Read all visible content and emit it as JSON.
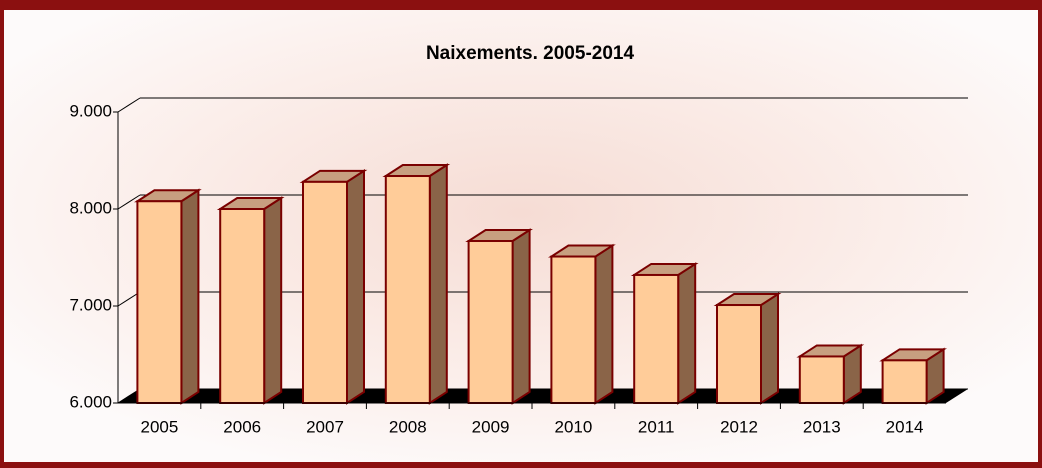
{
  "chart_data": {
    "type": "bar3d",
    "title": "Naixements. 2005-2014",
    "categories": [
      "2005",
      "2006",
      "2007",
      "2008",
      "2009",
      "2010",
      "2011",
      "2012",
      "2013",
      "2014"
    ],
    "values": [
      8080,
      8000,
      8280,
      8340,
      7670,
      7510,
      7320,
      7010,
      6480,
      6440
    ],
    "color": "#ffcc99",
    "ylim": [
      6000,
      9000
    ],
    "yticks": [
      {
        "value": 6000,
        "label": "6.000"
      },
      {
        "value": 7000,
        "label": "7.000"
      },
      {
        "value": 8000,
        "label": "8.000"
      },
      {
        "value": 9000,
        "label": "9.000"
      }
    ],
    "grid": true
  }
}
